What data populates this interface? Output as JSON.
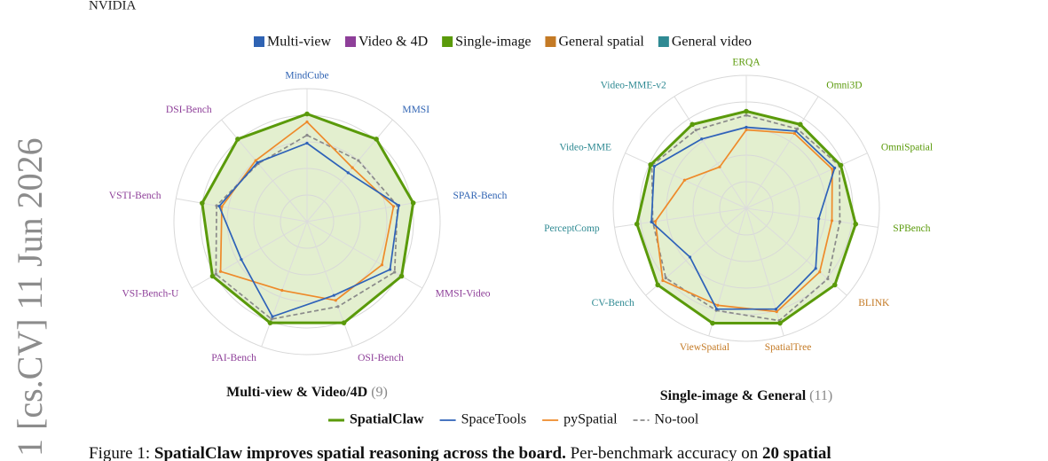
{
  "header": "NVIDIA",
  "side_stamp": "1 [cs.CV] 11 Jun 2026",
  "group_legend": [
    {
      "name": "Multi-view",
      "color": "#2f63b3"
    },
    {
      "name": "Video & 4D",
      "color": "#8e3f99"
    },
    {
      "name": "Single-image",
      "color": "#5a9a0a"
    },
    {
      "name": "General spatial",
      "color": "#c47a25"
    },
    {
      "name": "General video",
      "color": "#2f8a93"
    }
  ],
  "chart_data": [
    {
      "type": "radar",
      "title": "Multi-view & Video/4D",
      "count_label": "(9)",
      "categories": [
        "MindCube",
        "MMSI",
        "SPAR-Bench",
        "MMSI-Video",
        "OSI-Bench",
        "PAI-Bench",
        "VSI-Bench-U",
        "VSTI-Bench",
        "DSI-Bench"
      ],
      "category_colors": [
        "#2f63b3",
        "#2f63b3",
        "#2f63b3",
        "#8e3f99",
        "#8e3f99",
        "#8e3f99",
        "#8e3f99",
        "#8e3f99",
        "#8e3f99"
      ],
      "rlim": [
        0,
        100
      ],
      "rticks": [
        20,
        40,
        60,
        80,
        100
      ],
      "grid": true,
      "series": [
        {
          "name": "SpatialClaw",
          "color": "#5a9a0a",
          "fill": "#e3efcf",
          "values": [
            81,
            81,
            81,
            82,
            81,
            81,
            82,
            80,
            81
          ]
        },
        {
          "name": "SpaceTools",
          "color": "#2e62b8",
          "values": [
            59,
            48,
            70,
            72,
            59,
            76,
            57,
            67,
            58
          ]
        },
        {
          "name": "pySpatial",
          "color": "#ee8a2a",
          "values": [
            75,
            53,
            66,
            65,
            63,
            55,
            75,
            65,
            60
          ]
        },
        {
          "name": "No-tool",
          "color": "#8a8a8a",
          "dashed": true,
          "values": [
            65,
            60,
            69,
            76,
            68,
            78,
            79,
            69,
            57
          ]
        }
      ]
    },
    {
      "type": "radar",
      "title": "Single-image & General",
      "count_label": "(11)",
      "categories": [
        "ERQA",
        "Omni3D",
        "OmniSpatial",
        "SPBench",
        "BLINK",
        "SpatialTree",
        "ViewSpatial",
        "CV-Bench",
        "PerceptComp",
        "Video-MME",
        "Video-MME-v2"
      ],
      "category_colors": [
        "#5a9a0a",
        "#5a9a0a",
        "#5a9a0a",
        "#5a9a0a",
        "#c47a25",
        "#c47a25",
        "#c47a25",
        "#2f8a93",
        "#2f8a93",
        "#2f8a93",
        "#2f8a93"
      ],
      "rlim": [
        0,
        100
      ],
      "rticks": [
        20,
        40,
        60,
        80,
        100
      ],
      "grid": true,
      "series": [
        {
          "color": "#5a9a0a",
          "fill": "#e3efcf",
          "values": [
            73,
            75,
            78,
            83,
            88,
            90,
            90,
            88,
            83,
            79,
            75
          ]
        },
        {
          "color": "#2e62b8",
          "values": [
            61,
            69,
            73,
            55,
            69,
            79,
            79,
            56,
            72,
            76,
            62
          ]
        },
        {
          "color": "#ee8a2a",
          "values": [
            59,
            67,
            71,
            65,
            73,
            81,
            76,
            83,
            69,
            51,
            37
          ]
        },
        {
          "color": "#8a8a8a",
          "dashed": true,
          "values": [
            70,
            71,
            77,
            71,
            81,
            88,
            80,
            80,
            71,
            78,
            70
          ]
        }
      ]
    }
  ],
  "caption": {
    "label": "Figure 1:",
    "bold": "SpatialClaw improves spatial reasoning across the board.",
    "text": "Per-benchmark accuracy on",
    "bold_end": "20 spatial"
  }
}
